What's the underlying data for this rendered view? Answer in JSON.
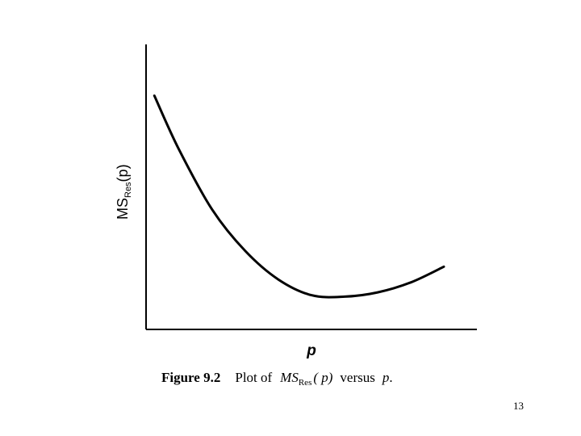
{
  "chart_data": {
    "type": "line",
    "title": "",
    "xlabel": "p",
    "ylabel": {
      "main": "MS",
      "sub": "Res",
      "arg": "(p)"
    },
    "xlim": [
      0,
      10
    ],
    "ylim": [
      0,
      10
    ],
    "grid": false,
    "ticks": false,
    "series": [
      {
        "x": [
          0.25,
          1.0,
          2.0,
          3.0,
          4.0,
          5.0,
          6.0,
          7.0,
          8.0,
          9.0
        ],
        "values": [
          8.2,
          6.3,
          4.2,
          2.75,
          1.75,
          1.2,
          1.15,
          1.3,
          1.65,
          2.2
        ]
      }
    ]
  },
  "caption": {
    "label": "Figure 9.2",
    "text_before": "Plot of",
    "symbol": "MS",
    "symbol_sub": "Res",
    "symbol_arg": "( p)",
    "text_after": "versus",
    "var": "p",
    "end": "."
  },
  "page_number": "13"
}
